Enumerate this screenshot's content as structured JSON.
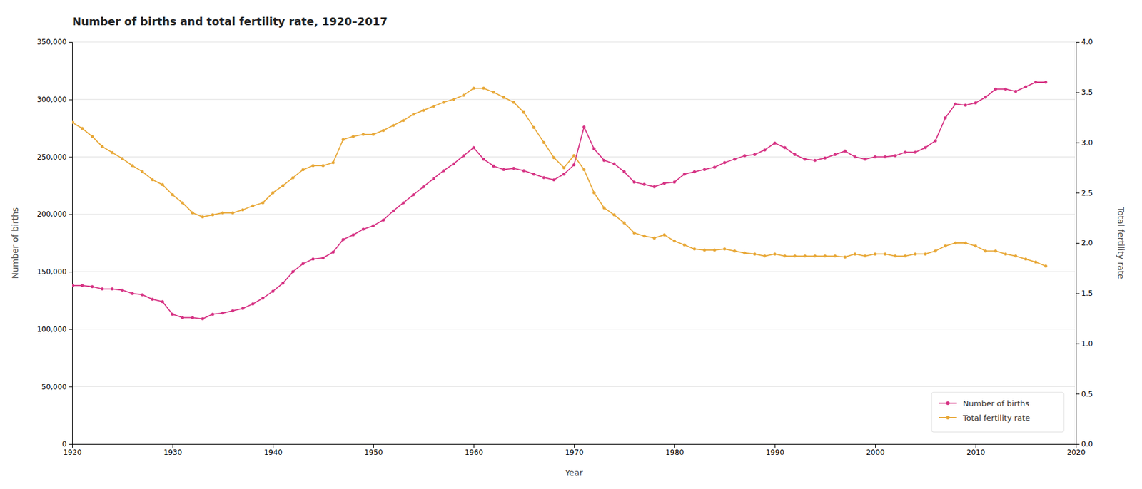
{
  "chart_data": {
    "type": "line",
    "title": "Number of births and total fertility rate, 1920–2017",
    "xlabel": "Year",
    "ylabel": "Number of births",
    "y2label": "Total fertility rate",
    "x": [
      1920,
      1921,
      1922,
      1923,
      1924,
      1925,
      1926,
      1927,
      1928,
      1929,
      1930,
      1931,
      1932,
      1933,
      1934,
      1935,
      1936,
      1937,
      1938,
      1939,
      1940,
      1941,
      1942,
      1943,
      1944,
      1945,
      1946,
      1947,
      1948,
      1949,
      1950,
      1951,
      1952,
      1953,
      1954,
      1955,
      1956,
      1957,
      1958,
      1959,
      1960,
      1961,
      1962,
      1963,
      1964,
      1965,
      1966,
      1967,
      1968,
      1969,
      1970,
      1971,
      1972,
      1973,
      1974,
      1975,
      1976,
      1977,
      1978,
      1979,
      1980,
      1981,
      1982,
      1983,
      1984,
      1985,
      1986,
      1987,
      1988,
      1989,
      1990,
      1991,
      1992,
      1993,
      1994,
      1995,
      1996,
      1997,
      1998,
      1999,
      2000,
      2001,
      2002,
      2003,
      2004,
      2005,
      2006,
      2007,
      2008,
      2009,
      2010,
      2011,
      2012,
      2013,
      2014,
      2015,
      2016,
      2017
    ],
    "series": [
      {
        "name": "Number of births",
        "color": "#d63384",
        "marker": "circle",
        "line_style": "solid",
        "values": [
          138000,
          138000,
          137000,
          135000,
          135000,
          134000,
          131000,
          130000,
          126000,
          124000,
          113000,
          110000,
          110000,
          109000,
          113000,
          114000,
          116000,
          118000,
          122000,
          127000,
          133000,
          140000,
          150000,
          157000,
          161000,
          162000,
          167000,
          178000,
          182000,
          187000,
          190000,
          195000,
          203000,
          210000,
          217000,
          224000,
          231000,
          238000,
          244000,
          251000,
          258000,
          248000,
          242000,
          239000,
          240000,
          238000,
          235000,
          232000,
          230000,
          235000,
          243000,
          276000,
          257000,
          247000,
          244000,
          237000,
          228000,
          226000,
          224000,
          227000,
          228000,
          235000,
          237000,
          239000,
          241000,
          245000,
          248000,
          251000,
          252000,
          256000,
          262000,
          258000,
          252000,
          248000,
          247000,
          249000,
          252000,
          255000,
          250000,
          248000,
          250000,
          250000,
          251000,
          254000,
          254000,
          258000,
          264000,
          284000,
          296000,
          295000,
          297000,
          302000,
          309000,
          309000,
          307000,
          311000,
          315000,
          315000
        ]
      },
      {
        "name": "Total fertility rate",
        "color": "#e8a838",
        "marker": "circle",
        "line_style": "solid",
        "axis": "y2",
        "values": [
          3.2,
          3.14,
          3.06,
          2.96,
          2.9,
          2.84,
          2.77,
          2.71,
          2.63,
          2.58,
          2.48,
          2.4,
          2.3,
          2.26,
          2.28,
          2.3,
          2.3,
          2.33,
          2.37,
          2.4,
          2.5,
          2.57,
          2.65,
          2.73,
          2.77,
          2.77,
          2.8,
          3.03,
          3.06,
          3.08,
          3.08,
          3.12,
          3.17,
          3.22,
          3.28,
          3.32,
          3.36,
          3.4,
          3.43,
          3.47,
          3.54,
          3.54,
          3.5,
          3.45,
          3.4,
          3.3,
          3.15,
          3.0,
          2.85,
          2.75,
          2.87,
          2.73,
          2.5,
          2.35,
          2.28,
          2.2,
          2.1,
          2.07,
          2.05,
          2.08,
          2.02,
          1.98,
          1.94,
          1.93,
          1.93,
          1.94,
          1.92,
          1.9,
          1.89,
          1.87,
          1.89,
          1.87,
          1.87,
          1.87,
          1.87,
          1.87,
          1.87,
          1.86,
          1.89,
          1.87,
          1.89,
          1.89,
          1.87,
          1.87,
          1.89,
          1.89,
          1.92,
          1.97,
          2.0,
          2.0,
          1.97,
          1.92,
          1.92,
          1.89,
          1.87,
          1.84,
          1.81,
          1.77
        ]
      }
    ],
    "xlim": [
      1920,
      2020
    ],
    "xticks": [
      1920,
      1930,
      1940,
      1950,
      1960,
      1970,
      1980,
      1990,
      2000,
      2010,
      2020
    ],
    "ylim": [
      0,
      350000
    ],
    "yticks": [
      0,
      {
        "value": 50000,
        "label": "50,000"
      },
      {
        "value": 100000,
        "label": "100,000"
      },
      {
        "value": 150000,
        "label": "150,000"
      },
      {
        "value": 200000,
        "label": "200,000"
      },
      {
        "value": 250000,
        "label": "250,000"
      },
      {
        "value": 300000,
        "label": "300,000"
      },
      {
        "value": 350000,
        "label": "350,000"
      }
    ],
    "y2lim": [
      0.0,
      4.0
    ],
    "y2ticks": [
      {
        "value": 0.0,
        "label": "0.0"
      },
      0.5,
      {
        "value": 1.0,
        "label": "1.0"
      },
      1.5,
      {
        "value": 2.0,
        "label": "2.0"
      },
      2.5,
      {
        "value": 3.0,
        "label": "3.0"
      },
      3.5,
      {
        "value": 4.0,
        "label": "4.0"
      }
    ],
    "grid": true,
    "legend": "lower right"
  }
}
